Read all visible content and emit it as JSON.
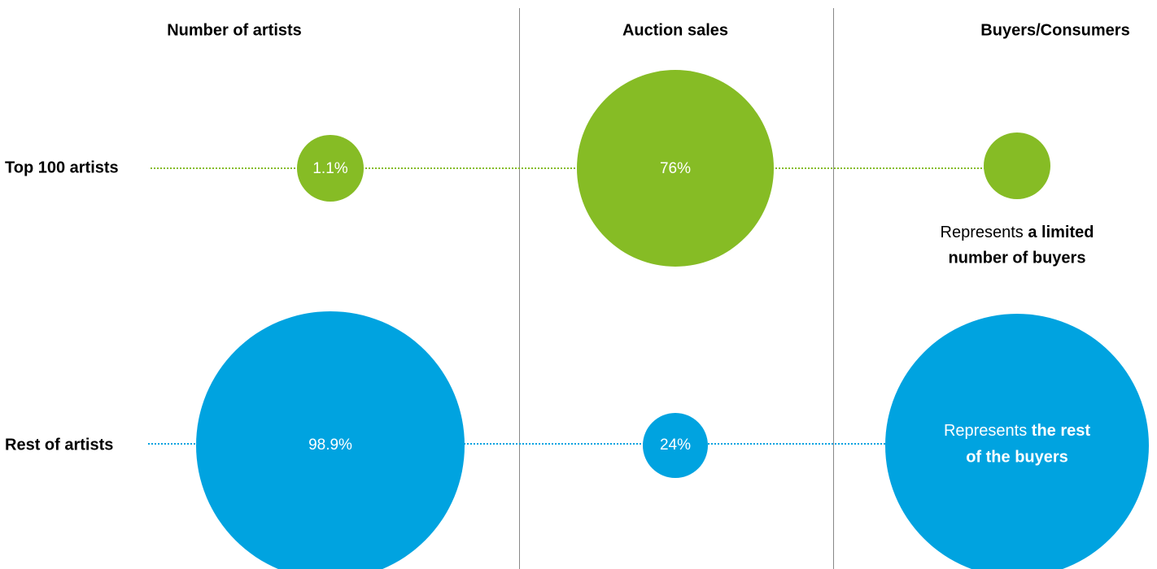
{
  "columns": [
    "Number of artists",
    "Auction sales",
    "Buyers/Consumers"
  ],
  "rows": [
    {
      "label": "Top 100 artists",
      "cells": [
        "1.1%",
        "76%"
      ],
      "note": {
        "text": "Represents",
        "bold_1": "a limited",
        "bold_2": "number of buyers"
      }
    },
    {
      "label": "Rest of artists",
      "cells": [
        "98.9%",
        "24%"
      ],
      "note": {
        "text": "Represents",
        "bold_1": "the rest",
        "bold_2": "of the buyers"
      }
    }
  ]
}
